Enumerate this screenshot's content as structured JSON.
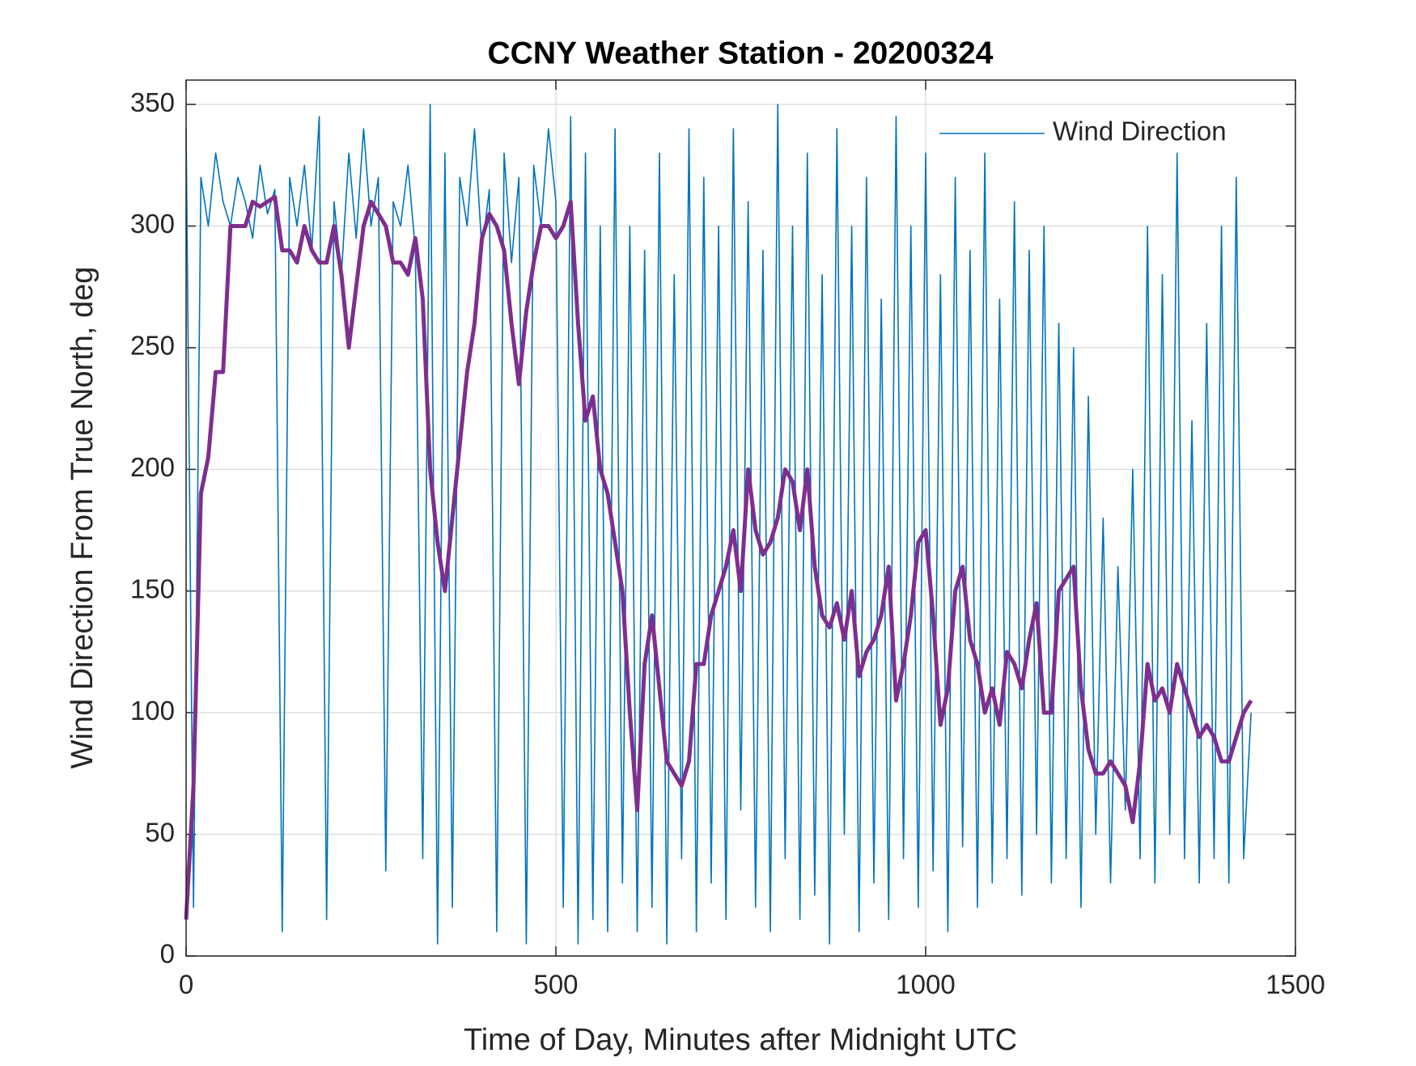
{
  "chart_data": {
    "type": "line",
    "title": "CCNY Weather Station - 20200324",
    "xlabel": "Time of Day, Minutes after Midnight UTC",
    "ylabel": "Wind Direction From True North, deg",
    "xlim": [
      0,
      1500
    ],
    "xticks": [
      0,
      500,
      1000,
      1500
    ],
    "ylim": [
      0,
      360
    ],
    "yticks": [
      0,
      50,
      100,
      150,
      200,
      250,
      300,
      350
    ],
    "grid": true,
    "legend": "upper right",
    "x": [
      0,
      10,
      20,
      30,
      40,
      50,
      60,
      70,
      80,
      90,
      100,
      110,
      120,
      130,
      140,
      150,
      160,
      170,
      180,
      190,
      200,
      210,
      220,
      230,
      240,
      250,
      260,
      270,
      280,
      290,
      300,
      310,
      320,
      330,
      340,
      350,
      360,
      370,
      380,
      390,
      400,
      410,
      420,
      430,
      440,
      450,
      460,
      470,
      480,
      490,
      500,
      510,
      520,
      530,
      540,
      550,
      560,
      570,
      580,
      590,
      600,
      610,
      620,
      630,
      640,
      650,
      660,
      670,
      680,
      690,
      700,
      710,
      720,
      730,
      740,
      750,
      760,
      770,
      780,
      790,
      800,
      810,
      820,
      830,
      840,
      850,
      860,
      870,
      880,
      890,
      900,
      910,
      920,
      930,
      940,
      950,
      960,
      970,
      980,
      990,
      1000,
      1010,
      1020,
      1030,
      1040,
      1050,
      1060,
      1070,
      1080,
      1090,
      1100,
      1110,
      1120,
      1130,
      1140,
      1150,
      1160,
      1170,
      1180,
      1190,
      1200,
      1210,
      1220,
      1230,
      1240,
      1250,
      1260,
      1270,
      1280,
      1290,
      1300,
      1310,
      1320,
      1330,
      1340,
      1350,
      1360,
      1370,
      1380,
      1390,
      1400,
      1410,
      1420,
      1430,
      1440
    ],
    "series": [
      {
        "name": "Wind Direction",
        "color": "#0072bd",
        "values": [
          340,
          20,
          320,
          300,
          330,
          310,
          300,
          320,
          310,
          295,
          325,
          305,
          315,
          10,
          320,
          300,
          325,
          290,
          345,
          15,
          310,
          280,
          330,
          295,
          340,
          300,
          320,
          35,
          310,
          300,
          325,
          290,
          40,
          350,
          5,
          330,
          20,
          320,
          300,
          340,
          290,
          315,
          10,
          330,
          285,
          320,
          5,
          325,
          300,
          340,
          310,
          20,
          345,
          5,
          330,
          15,
          300,
          10,
          340,
          30,
          300,
          10,
          290,
          20,
          330,
          5,
          280,
          40,
          340,
          10,
          320,
          30,
          300,
          15,
          340,
          60,
          310,
          20,
          290,
          10,
          350,
          40,
          300,
          15,
          330,
          25,
          280,
          5,
          340,
          50,
          300,
          10,
          320,
          30,
          270,
          15,
          345,
          40,
          300,
          20,
          330,
          35,
          280,
          10,
          320,
          45,
          290,
          20,
          330,
          30,
          270,
          40,
          310,
          25,
          290,
          50,
          300,
          30,
          260,
          40,
          250,
          20,
          230,
          50,
          180,
          30,
          160,
          60,
          200,
          40,
          300,
          30,
          280,
          50,
          330,
          40,
          220,
          30,
          260,
          40,
          300,
          30,
          320,
          40,
          100
        ]
      },
      {
        "color": "#7e2f8e",
        "values": [
          15,
          70,
          190,
          205,
          240,
          240,
          300,
          300,
          300,
          310,
          308,
          310,
          312,
          290,
          290,
          285,
          300,
          290,
          285,
          285,
          300,
          280,
          250,
          275,
          300,
          310,
          305,
          300,
          285,
          285,
          280,
          295,
          270,
          200,
          170,
          150,
          180,
          210,
          240,
          260,
          295,
          305,
          300,
          290,
          260,
          235,
          265,
          285,
          300,
          300,
          295,
          300,
          310,
          260,
          220,
          230,
          200,
          190,
          170,
          150,
          100,
          60,
          120,
          140,
          110,
          80,
          75,
          70,
          80,
          120,
          120,
          140,
          150,
          160,
          175,
          150,
          200,
          175,
          165,
          170,
          180,
          200,
          195,
          175,
          200,
          160,
          140,
          135,
          145,
          130,
          150,
          115,
          125,
          130,
          140,
          160,
          105,
          120,
          140,
          170,
          175,
          140,
          95,
          110,
          150,
          160,
          130,
          120,
          100,
          110,
          95,
          125,
          120,
          110,
          130,
          145,
          100,
          100,
          150,
          155,
          160,
          110,
          85,
          75,
          75,
          80,
          75,
          70,
          55,
          80,
          120,
          105,
          110,
          100,
          120,
          110,
          100,
          90,
          95,
          90,
          80,
          80,
          90,
          100,
          105
        ]
      }
    ]
  }
}
